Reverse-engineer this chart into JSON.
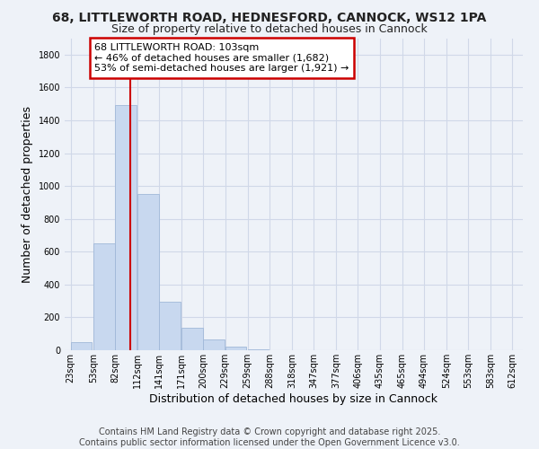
{
  "title": "68, LITTLEWORTH ROAD, HEDNESFORD, CANNOCK, WS12 1PA",
  "subtitle": "Size of property relative to detached houses in Cannock",
  "xlabel": "Distribution of detached houses by size in Cannock",
  "ylabel": "Number of detached properties",
  "bar_color": "#c8d8ef",
  "bar_edgecolor": "#a0b8d8",
  "annotation_box_color": "#ffffff",
  "annotation_box_edgecolor": "#cc0000",
  "vline_color": "#cc0000",
  "vline_x": 103,
  "annotation_line1": "68 LITTLEWORTH ROAD: 103sqm",
  "annotation_line2": "← 46% of detached houses are smaller (1,682)",
  "annotation_line3": "53% of semi-detached houses are larger (1,921) →",
  "bins_left": [
    23,
    53,
    82,
    112,
    141,
    171,
    200,
    229,
    259,
    288,
    318,
    347,
    377,
    406,
    435,
    465,
    494,
    524,
    553,
    583
  ],
  "bin_width": 29,
  "bar_heights": [
    50,
    650,
    1490,
    950,
    295,
    135,
    65,
    20,
    5,
    2,
    1,
    0,
    0,
    0,
    0,
    0,
    0,
    0,
    0,
    0
  ],
  "xlim": [
    15,
    626
  ],
  "ylim": [
    0,
    1900
  ],
  "yticks": [
    0,
    200,
    400,
    600,
    800,
    1000,
    1200,
    1400,
    1600,
    1800
  ],
  "xtick_labels": [
    "23sqm",
    "53sqm",
    "82sqm",
    "112sqm",
    "141sqm",
    "171sqm",
    "200sqm",
    "229sqm",
    "259sqm",
    "288sqm",
    "318sqm",
    "347sqm",
    "377sqm",
    "406sqm",
    "435sqm",
    "465sqm",
    "494sqm",
    "524sqm",
    "553sqm",
    "583sqm",
    "612sqm"
  ],
  "xtick_positions": [
    23,
    53,
    82,
    112,
    141,
    171,
    200,
    229,
    259,
    288,
    318,
    347,
    377,
    406,
    435,
    465,
    494,
    524,
    553,
    583,
    612
  ],
  "grid_color": "#d0d8e8",
  "background_color": "#eef2f8",
  "footer_line1": "Contains HM Land Registry data © Crown copyright and database right 2025.",
  "footer_line2": "Contains public sector information licensed under the Open Government Licence v3.0.",
  "title_fontsize": 10,
  "subtitle_fontsize": 9,
  "axis_label_fontsize": 9,
  "tick_fontsize": 7,
  "annotation_fontsize": 8,
  "footer_fontsize": 7
}
